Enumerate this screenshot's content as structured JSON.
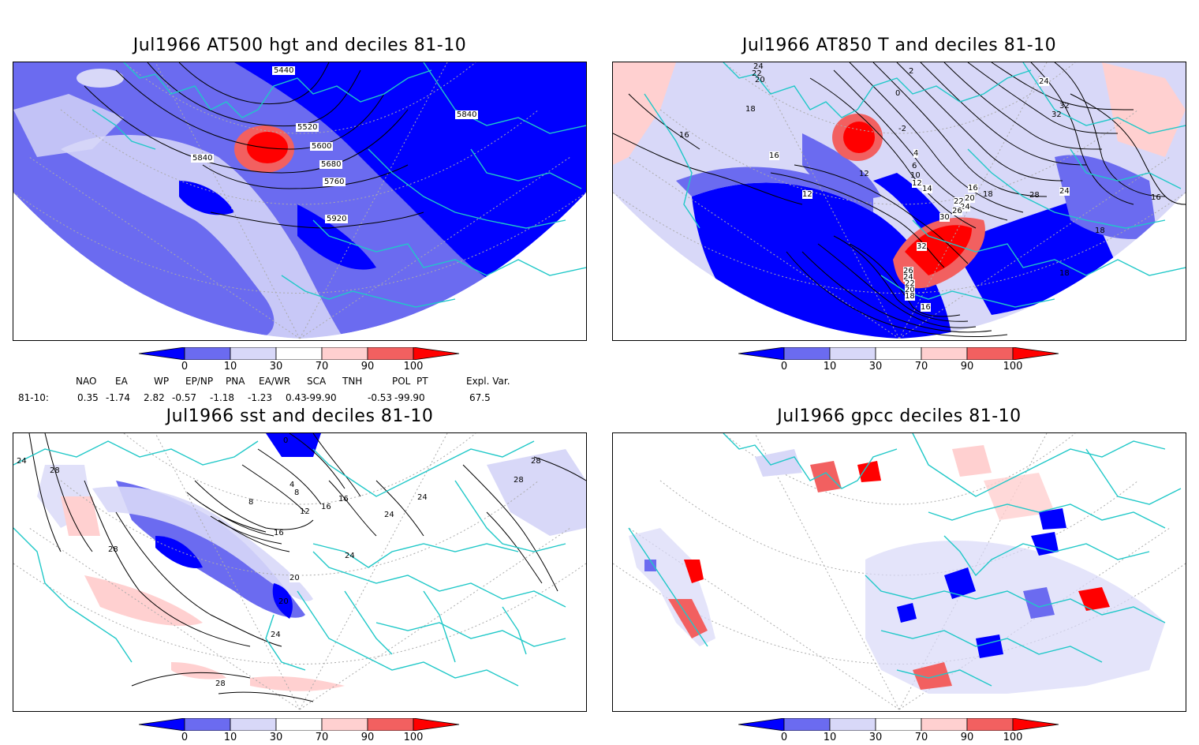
{
  "panels": [
    {
      "title": "Jul1966 AT500 hgt and deciles 81-10",
      "labels": [
        "5440",
        "5520",
        "5600",
        "5680",
        "5760",
        "5840",
        "5840",
        "5920"
      ]
    },
    {
      "title": "Jul1966 AT850 T and deciles 81-10",
      "labels": [
        "24",
        "22",
        "20",
        "18",
        "16",
        "16",
        "12",
        "12",
        "2",
        "0",
        "-2",
        "4",
        "6",
        "10",
        "12",
        "14",
        "16",
        "18",
        "20",
        "22",
        "24",
        "26",
        "28",
        "30",
        "32",
        "24",
        "16",
        "18",
        "18",
        "26",
        "24",
        "22",
        "20",
        "18",
        "16",
        "32",
        "30",
        "32",
        "24",
        "16"
      ]
    },
    {
      "title": "Jul1966 sst and deciles 81-10",
      "labels": [
        "24",
        "28",
        "28",
        "0",
        "4",
        "8",
        "8",
        "12",
        "16",
        "16",
        "20",
        "20",
        "24",
        "24",
        "24",
        "28",
        "28",
        "28",
        "24",
        "16"
      ]
    },
    {
      "title": "Jul1966 gpcc deciles 81-10",
      "labels": []
    }
  ],
  "colorbar": {
    "ticks": [
      "0",
      "10",
      "30",
      "70",
      "90",
      "100"
    ],
    "colors": [
      "#0000ff",
      "#6b6bf0",
      "#d8d8f8",
      "#ffffff",
      "#ffd0d0",
      "#f26060",
      "#ff0000"
    ]
  },
  "indices": {
    "header": [
      "NAO",
      "EA",
      "WP",
      "EP/NP",
      "PNA",
      "EA/WR",
      "SCA",
      "TNH",
      "POL",
      "PT",
      "Expl. Var."
    ],
    "row_label": "81-10:",
    "values": [
      "0.35",
      "-1.74",
      "2.82",
      "-0.57",
      "-1.18",
      "-1.23",
      "0.43",
      "-99.90",
      "-0.53",
      "-99.90",
      "67.5"
    ]
  },
  "map_style": {
    "coast": "#20c8c8",
    "grid": "#aaaaaa"
  }
}
